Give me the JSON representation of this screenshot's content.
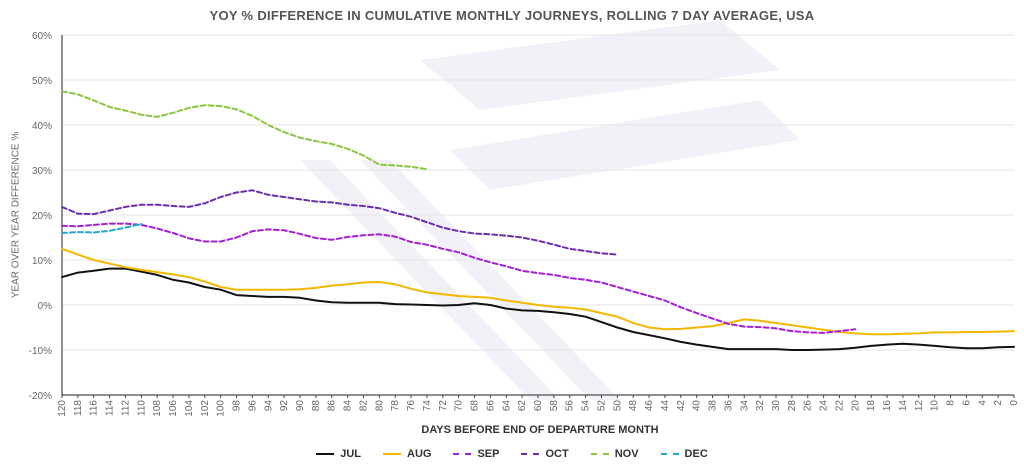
{
  "chart_data": {
    "type": "line",
    "title": "YOY % DIFFERENCE IN CUMULATIVE MONTHLY JOURNEYS, ROLLING 7 DAY AVERAGE, USA",
    "xlabel": "DAYS BEFORE END OF DEPARTURE MONTH",
    "ylabel": "YEAR OVER YEAR DIFFERENCE %",
    "xlim": [
      120,
      0
    ],
    "ylim": [
      -20,
      60
    ],
    "x_ticks": [
      120,
      118,
      116,
      114,
      112,
      110,
      108,
      106,
      104,
      102,
      100,
      98,
      96,
      94,
      92,
      90,
      88,
      86,
      84,
      82,
      80,
      78,
      76,
      74,
      72,
      70,
      68,
      66,
      64,
      62,
      60,
      58,
      56,
      54,
      52,
      50,
      48,
      46,
      44,
      42,
      40,
      38,
      36,
      34,
      32,
      30,
      28,
      26,
      24,
      22,
      20,
      18,
      16,
      14,
      12,
      10,
      8,
      6,
      4,
      2,
      0
    ],
    "y_ticks": [
      "60%",
      "50%",
      "40%",
      "30%",
      "20%",
      "10%",
      "0%",
      "-10%",
      "-20%"
    ],
    "y_tick_values": [
      60,
      50,
      40,
      30,
      20,
      10,
      0,
      -10,
      -20
    ],
    "grid": "horizontal",
    "legend_position": "bottom",
    "series": [
      {
        "name": "JUL",
        "color": "#111111",
        "style": "solid",
        "points": [
          [
            120,
            6.2
          ],
          [
            118,
            7.2
          ],
          [
            116,
            7.6
          ],
          [
            114,
            8.1
          ],
          [
            112,
            8.1
          ],
          [
            110,
            7.4
          ],
          [
            108,
            6.7
          ],
          [
            106,
            5.6
          ],
          [
            104,
            5
          ],
          [
            102,
            4
          ],
          [
            100,
            3.4
          ],
          [
            98,
            2.2
          ],
          [
            96,
            2
          ],
          [
            94,
            1.8
          ],
          [
            92,
            1.8
          ],
          [
            90,
            1.6
          ],
          [
            88,
            1
          ],
          [
            86,
            0.6
          ],
          [
            84,
            0.5
          ],
          [
            82,
            0.5
          ],
          [
            80,
            0.5
          ],
          [
            78,
            0.2
          ],
          [
            76,
            0.1
          ],
          [
            74,
            0
          ],
          [
            72,
            -0.1
          ],
          [
            70,
            0
          ],
          [
            68,
            0.4
          ],
          [
            66,
            0
          ],
          [
            64,
            -0.8
          ],
          [
            62,
            -1.2
          ],
          [
            60,
            -1.3
          ],
          [
            58,
            -1.6
          ],
          [
            56,
            -2
          ],
          [
            54,
            -2.6
          ],
          [
            52,
            -3.8
          ],
          [
            50,
            -5
          ],
          [
            48,
            -6
          ],
          [
            46,
            -6.7
          ],
          [
            44,
            -7.4
          ],
          [
            42,
            -8.2
          ],
          [
            40,
            -8.8
          ],
          [
            38,
            -9.3
          ],
          [
            36,
            -9.8
          ],
          [
            34,
            -9.8
          ],
          [
            32,
            -9.8
          ],
          [
            30,
            -9.8
          ],
          [
            28,
            -10
          ],
          [
            26,
            -10
          ],
          [
            24,
            -9.9
          ],
          [
            22,
            -9.8
          ],
          [
            20,
            -9.5
          ],
          [
            18,
            -9.1
          ],
          [
            16,
            -8.8
          ],
          [
            14,
            -8.6
          ],
          [
            12,
            -8.8
          ],
          [
            10,
            -9.1
          ],
          [
            8,
            -9.4
          ],
          [
            6,
            -9.6
          ],
          [
            4,
            -9.6
          ],
          [
            2,
            -9.4
          ],
          [
            0,
            -9.3
          ]
        ]
      },
      {
        "name": "AUG",
        "color": "#f5b800",
        "style": "solid",
        "points": [
          [
            120,
            12.5
          ],
          [
            118,
            11.2
          ],
          [
            116,
            10
          ],
          [
            114,
            9.2
          ],
          [
            112,
            8.4
          ],
          [
            110,
            7.8
          ],
          [
            108,
            7.3
          ],
          [
            106,
            6.8
          ],
          [
            104,
            6.2
          ],
          [
            102,
            5.2
          ],
          [
            100,
            4
          ],
          [
            98,
            3.4
          ],
          [
            96,
            3.4
          ],
          [
            94,
            3.4
          ],
          [
            92,
            3.4
          ],
          [
            90,
            3.5
          ],
          [
            88,
            3.8
          ],
          [
            86,
            4.3
          ],
          [
            84,
            4.6
          ],
          [
            82,
            5
          ],
          [
            80,
            5.1
          ],
          [
            78,
            4.6
          ],
          [
            76,
            3.6
          ],
          [
            74,
            2.8
          ],
          [
            72,
            2.4
          ],
          [
            70,
            2
          ],
          [
            68,
            1.8
          ],
          [
            66,
            1.6
          ],
          [
            64,
            1
          ],
          [
            62,
            0.5
          ],
          [
            60,
            0
          ],
          [
            58,
            -0.4
          ],
          [
            56,
            -0.6
          ],
          [
            54,
            -1
          ],
          [
            52,
            -1.8
          ],
          [
            50,
            -2.6
          ],
          [
            48,
            -4
          ],
          [
            46,
            -5
          ],
          [
            44,
            -5.4
          ],
          [
            42,
            -5.3
          ],
          [
            40,
            -5
          ],
          [
            38,
            -4.7
          ],
          [
            36,
            -4
          ],
          [
            34,
            -3.2
          ],
          [
            32,
            -3.5
          ],
          [
            30,
            -4
          ],
          [
            28,
            -4.5
          ],
          [
            26,
            -5
          ],
          [
            24,
            -5.5
          ],
          [
            22,
            -6
          ],
          [
            20,
            -6.3
          ],
          [
            18,
            -6.5
          ],
          [
            16,
            -6.5
          ],
          [
            14,
            -6.4
          ],
          [
            12,
            -6.3
          ],
          [
            10,
            -6.1
          ],
          [
            8,
            -6.1
          ],
          [
            6,
            -6
          ],
          [
            4,
            -6
          ],
          [
            2,
            -5.9
          ],
          [
            0,
            -5.8
          ]
        ]
      },
      {
        "name": "SEP",
        "color": "#a51fd6",
        "style": "dashed",
        "points": [
          [
            120,
            17.6
          ],
          [
            118,
            17.5
          ],
          [
            116,
            17.8
          ],
          [
            114,
            18.1
          ],
          [
            112,
            18.1
          ],
          [
            110,
            17.8
          ],
          [
            108,
            17
          ],
          [
            106,
            16
          ],
          [
            104,
            14.8
          ],
          [
            102,
            14.1
          ],
          [
            100,
            14.1
          ],
          [
            98,
            15
          ],
          [
            96,
            16.4
          ],
          [
            94,
            16.8
          ],
          [
            92,
            16.6
          ],
          [
            90,
            15.8
          ],
          [
            88,
            14.9
          ],
          [
            86,
            14.5
          ],
          [
            84,
            15.1
          ],
          [
            82,
            15.5
          ],
          [
            80,
            15.7
          ],
          [
            78,
            15.2
          ],
          [
            76,
            14
          ],
          [
            74,
            13.4
          ],
          [
            72,
            12.5
          ],
          [
            70,
            11.7
          ],
          [
            68,
            10.5
          ],
          [
            66,
            9.5
          ],
          [
            64,
            8.6
          ],
          [
            62,
            7.6
          ],
          [
            60,
            7.1
          ],
          [
            58,
            6.7
          ],
          [
            56,
            6
          ],
          [
            54,
            5.6
          ],
          [
            52,
            5
          ],
          [
            50,
            4
          ],
          [
            48,
            3
          ],
          [
            46,
            2
          ],
          [
            44,
            1
          ],
          [
            42,
            -0.5
          ],
          [
            40,
            -1.8
          ],
          [
            38,
            -3
          ],
          [
            36,
            -4.2
          ],
          [
            34,
            -4.8
          ],
          [
            32,
            -4.9
          ],
          [
            30,
            -5.2
          ],
          [
            28,
            -5.8
          ],
          [
            26,
            -6.1
          ],
          [
            24,
            -6.2
          ],
          [
            22,
            -5.8
          ],
          [
            20,
            -5.4
          ]
        ]
      },
      {
        "name": "OCT",
        "color": "#6a2fb0",
        "style": "dashed",
        "points": [
          [
            120,
            21.8
          ],
          [
            118,
            20.3
          ],
          [
            116,
            20.2
          ],
          [
            114,
            21
          ],
          [
            112,
            21.8
          ],
          [
            110,
            22.3
          ],
          [
            108,
            22.3
          ],
          [
            106,
            22
          ],
          [
            104,
            21.8
          ],
          [
            102,
            22.6
          ],
          [
            100,
            24
          ],
          [
            98,
            25
          ],
          [
            96,
            25.5
          ],
          [
            94,
            24.5
          ],
          [
            92,
            24
          ],
          [
            90,
            23.5
          ],
          [
            88,
            23
          ],
          [
            86,
            22.8
          ],
          [
            84,
            22.3
          ],
          [
            82,
            22
          ],
          [
            80,
            21.5
          ],
          [
            78,
            20.5
          ],
          [
            76,
            19.6
          ],
          [
            74,
            18.4
          ],
          [
            72,
            17.2
          ],
          [
            70,
            16.4
          ],
          [
            68,
            15.9
          ],
          [
            66,
            15.7
          ],
          [
            64,
            15.4
          ],
          [
            62,
            15
          ],
          [
            60,
            14.3
          ],
          [
            58,
            13.4
          ],
          [
            56,
            12.5
          ],
          [
            54,
            12
          ],
          [
            52,
            11.5
          ],
          [
            50,
            11.2
          ]
        ]
      },
      {
        "name": "NOV",
        "color": "#8cc63f",
        "style": "dashed",
        "points": [
          [
            120,
            47.5
          ],
          [
            118,
            46.8
          ],
          [
            116,
            45.5
          ],
          [
            114,
            44
          ],
          [
            112,
            43.2
          ],
          [
            110,
            42.3
          ],
          [
            108,
            41.8
          ],
          [
            106,
            42.7
          ],
          [
            104,
            43.8
          ],
          [
            102,
            44.4
          ],
          [
            100,
            44.2
          ],
          [
            98,
            43.5
          ],
          [
            96,
            42
          ],
          [
            94,
            40
          ],
          [
            92,
            38.4
          ],
          [
            90,
            37.2
          ],
          [
            88,
            36.4
          ],
          [
            86,
            35.8
          ],
          [
            84,
            34.7
          ],
          [
            82,
            33.2
          ],
          [
            80,
            31.2
          ],
          [
            78,
            31
          ],
          [
            76,
            30.7
          ],
          [
            74,
            30.2
          ]
        ]
      },
      {
        "name": "DEC",
        "color": "#1ea7d7",
        "style": "dashed",
        "points": [
          [
            120,
            16
          ],
          [
            118,
            16.2
          ],
          [
            116,
            16.1
          ],
          [
            114,
            16.5
          ],
          [
            112,
            17.2
          ],
          [
            110,
            18
          ]
        ]
      }
    ]
  }
}
